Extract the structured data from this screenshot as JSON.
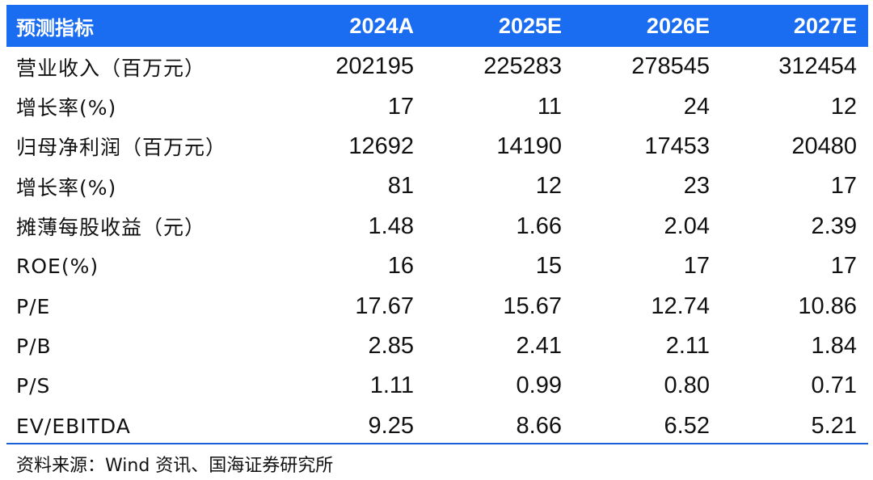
{
  "header": {
    "label": "预测指标",
    "years": [
      "2024A",
      "2025E",
      "2026E",
      "2027E"
    ]
  },
  "rows": [
    {
      "label": "营业收入（百万元）",
      "values": [
        "202195",
        "225283",
        "278545",
        "312454"
      ]
    },
    {
      "label": "增长率(%)",
      "values": [
        "17",
        "11",
        "24",
        "12"
      ]
    },
    {
      "label": "归母净利润（百万元）",
      "values": [
        "12692",
        "14190",
        "17453",
        "20480"
      ]
    },
    {
      "label": "增长率(%)",
      "values": [
        "81",
        "12",
        "23",
        "17"
      ]
    },
    {
      "label": "摊薄每股收益（元）",
      "values": [
        "1.48",
        "1.66",
        "2.04",
        "2.39"
      ]
    },
    {
      "label": "ROE(%)",
      "values": [
        "16",
        "15",
        "17",
        "17"
      ]
    },
    {
      "label": "P/E",
      "values": [
        "17.67",
        "15.67",
        "12.74",
        "10.86"
      ]
    },
    {
      "label": "P/B",
      "values": [
        "2.85",
        "2.41",
        "2.11",
        "1.84"
      ]
    },
    {
      "label": "P/S",
      "values": [
        "1.11",
        "0.99",
        "0.80",
        "0.71"
      ]
    },
    {
      "label": "EV/EBITDA",
      "values": [
        "9.25",
        "8.66",
        "6.52",
        "5.21"
      ]
    }
  ],
  "source": "资料来源：Wind 资讯、国海证券研究所",
  "colors": {
    "header_bg": "#1a6cf0",
    "header_text": "#ffffff",
    "rule": "#1a5fd6",
    "body_text": "#111111"
  }
}
